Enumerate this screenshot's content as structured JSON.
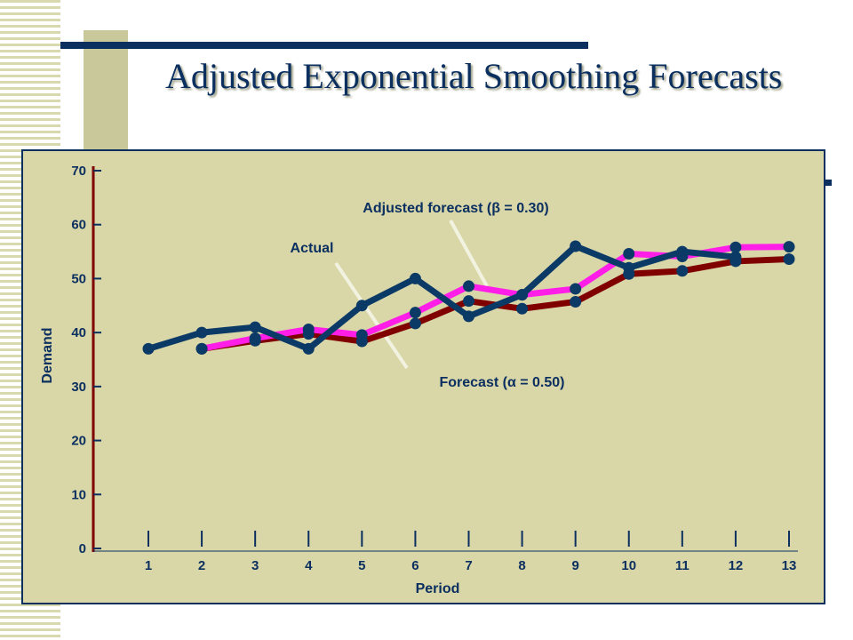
{
  "slide": {
    "title": "Adjusted Exponential Smoothing Forecasts"
  },
  "colors": {
    "background_panel": "#d9d6a8",
    "navy": "#0b3060",
    "actual": "#0b3a66",
    "forecast": "#800000",
    "adjusted": "#ff1ee8"
  },
  "chart_data": {
    "type": "line",
    "title": "",
    "xlabel": "Period",
    "ylabel": "Demand",
    "x": [
      1,
      2,
      3,
      4,
      5,
      6,
      7,
      8,
      9,
      10,
      11,
      12,
      13
    ],
    "xlim": [
      1,
      13
    ],
    "ylim": [
      0,
      70
    ],
    "yticks": [
      0,
      10,
      20,
      30,
      40,
      50,
      60,
      70
    ],
    "grid": false,
    "series": [
      {
        "name": "Actual",
        "color": "#0b3a66",
        "x": [
          1,
          2,
          3,
          4,
          5,
          6,
          7,
          8,
          9,
          10,
          11,
          12
        ],
        "values": [
          37,
          40,
          41,
          37,
          45,
          50,
          43,
          47,
          56,
          52,
          55,
          54
        ]
      },
      {
        "name": "Forecast (α = 0.50)",
        "color": "#800000",
        "x": [
          2,
          3,
          4,
          5,
          6,
          7,
          8,
          9,
          10,
          11,
          12,
          13
        ],
        "values": [
          37.0,
          38.5,
          39.75,
          38.37,
          41.68,
          45.84,
          44.42,
          45.71,
          50.85,
          51.42,
          53.21,
          53.61
        ]
      },
      {
        "name": "Adjusted forecast (β = 0.30)",
        "color": "#ff1ee8",
        "x": [
          2,
          3,
          4,
          5,
          6,
          7,
          8,
          9,
          10,
          11,
          12,
          13
        ],
        "values": [
          37.0,
          38.95,
          40.6,
          39.56,
          43.7,
          48.6,
          47.0,
          48.1,
          54.6,
          54.1,
          55.8,
          55.9
        ]
      }
    ],
    "annotations": [
      {
        "text": "Actual",
        "series": "Actual"
      },
      {
        "text": "Forecast (α = 0.50)",
        "series": "Forecast (α = 0.50)"
      },
      {
        "text": "Adjusted forecast (β = 0.30)",
        "series": "Adjusted forecast (β = 0.30)"
      }
    ]
  }
}
